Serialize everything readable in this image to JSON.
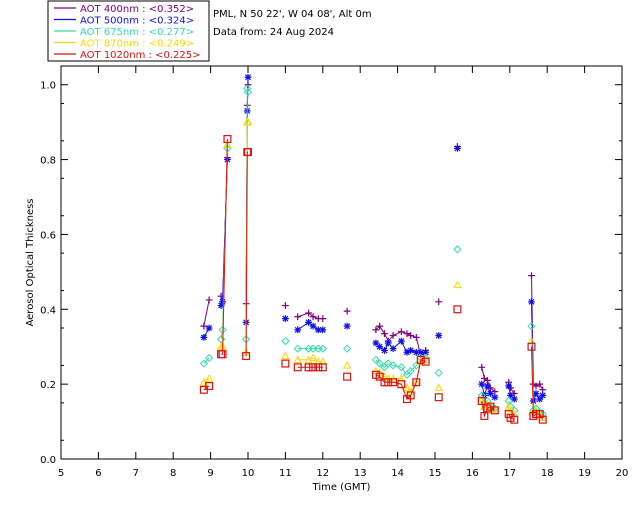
{
  "info": {
    "station": "PML, N 50 22', W 04 08', Alt 0m",
    "date_line": "Data from: 24 Aug 2024"
  },
  "chart_data": {
    "type": "scatter",
    "xlabel": "Time (GMT)",
    "ylabel": "Aerosol Optical Thickness",
    "xlim": [
      5,
      20
    ],
    "ylim": [
      0.0,
      1.05
    ],
    "x_ticks": [
      5,
      6,
      7,
      8,
      9,
      10,
      11,
      12,
      13,
      14,
      15,
      16,
      17,
      18,
      19,
      20
    ],
    "y_ticks": [
      0.0,
      0.2,
      0.4,
      0.6,
      0.8,
      1.0
    ],
    "legend_position": "top-left (outside plot)",
    "x": [
      8.82,
      8.96,
      9.28,
      9.32,
      9.45,
      9.95,
      9.98,
      10.0,
      11.0,
      11.33,
      11.62,
      11.74,
      11.88,
      12.0,
      12.65,
      13.42,
      13.52,
      13.65,
      13.75,
      13.88,
      14.1,
      14.25,
      14.35,
      14.5,
      14.62,
      14.75,
      15.1,
      15.6,
      16.25,
      16.32,
      16.4,
      16.48,
      16.6,
      16.97,
      17.02,
      17.12,
      17.58,
      17.63,
      17.7,
      17.8,
      17.88
    ],
    "series": [
      {
        "name": "AOT  400nm : <0.352>",
        "color": "#7f0080",
        "marker": "plus",
        "values": [
          0.355,
          0.425,
          0.435,
          0.42,
          0.805,
          0.415,
          0.945,
          1.0,
          0.41,
          0.38,
          0.39,
          0.38,
          0.375,
          0.375,
          0.395,
          0.345,
          0.355,
          0.335,
          0.315,
          0.33,
          0.34,
          0.335,
          0.33,
          0.325,
          0.275,
          0.29,
          0.42,
          0.835,
          0.245,
          0.215,
          0.21,
          0.19,
          0.18,
          0.205,
          0.19,
          0.175,
          0.49,
          0.2,
          0.195,
          0.2,
          0.185
        ]
      },
      {
        "name": "AOT  500nm : <0.324>",
        "color": "#1010ee",
        "marker": "star",
        "values": [
          0.325,
          0.35,
          0.41,
          0.42,
          0.8,
          0.365,
          0.93,
          1.02,
          0.375,
          0.345,
          0.365,
          0.355,
          0.345,
          0.345,
          0.355,
          0.31,
          0.3,
          0.29,
          0.31,
          0.295,
          0.315,
          0.285,
          0.29,
          0.285,
          0.285,
          0.285,
          0.33,
          0.83,
          0.2,
          0.17,
          0.195,
          0.175,
          0.165,
          0.195,
          0.17,
          0.16,
          0.42,
          0.155,
          0.175,
          0.16,
          0.17
        ]
      },
      {
        "name": "AOT  675nm : <0.277>",
        "color": "#33ddaa",
        "marker": "diamond",
        "values": [
          0.255,
          0.27,
          0.32,
          0.345,
          0.83,
          0.32,
          0.99,
          0.98,
          0.315,
          0.295,
          0.295,
          0.295,
          0.295,
          0.295,
          0.295,
          0.265,
          0.255,
          0.245,
          0.255,
          0.25,
          0.245,
          0.225,
          0.235,
          0.25,
          0.27,
          0.27,
          0.23,
          0.56,
          0.17,
          0.15,
          0.155,
          0.14,
          0.135,
          0.155,
          0.14,
          0.13,
          0.355,
          0.13,
          0.135,
          0.125,
          0.12
        ]
      },
      {
        "name": "AOT  870nm : <0.249>",
        "color": "#ffd700",
        "marker": "triangle",
        "values": [
          0.205,
          0.215,
          0.3,
          0.3,
          0.84,
          0.285,
          0.9,
          0.9,
          0.275,
          0.265,
          0.265,
          0.27,
          0.26,
          0.26,
          0.25,
          0.235,
          0.23,
          0.22,
          0.215,
          0.215,
          0.215,
          0.19,
          0.18,
          0.205,
          0.26,
          0.265,
          0.19,
          0.465,
          0.16,
          0.14,
          0.145,
          0.13,
          0.13,
          0.14,
          0.125,
          0.12,
          0.315,
          0.125,
          0.13,
          0.12,
          0.11
        ]
      },
      {
        "name": "AOT 1020nm : <0.225>",
        "color": "#dd1111",
        "marker": "square",
        "values": [
          0.185,
          0.195,
          0.28,
          0.28,
          0.855,
          0.275,
          0.82,
          0.82,
          0.255,
          0.245,
          0.245,
          0.245,
          0.245,
          0.245,
          0.22,
          0.225,
          0.22,
          0.205,
          0.205,
          0.205,
          0.2,
          0.16,
          0.17,
          0.205,
          0.265,
          0.26,
          0.165,
          0.4,
          0.155,
          0.115,
          0.135,
          0.14,
          0.13,
          0.12,
          0.11,
          0.105,
          0.3,
          0.115,
          0.12,
          0.12,
          0.105
        ]
      }
    ]
  }
}
